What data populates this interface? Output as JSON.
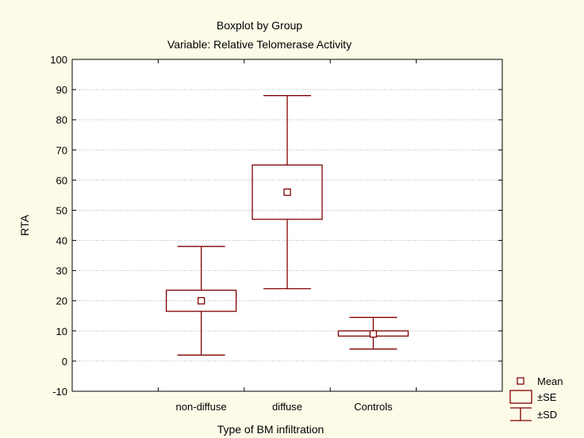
{
  "chart_data": {
    "type": "boxplot",
    "title": "Boxplot by Group",
    "subtitle": "Variable: Relative Telomerase Activity",
    "xlabel": "Type of BM infiltration",
    "ylabel": "RTA",
    "ylim": [
      -10,
      100
    ],
    "yticks": [
      "-10",
      "0",
      "10",
      "20",
      "30",
      "40",
      "50",
      "60",
      "70",
      "80",
      "90",
      "100"
    ],
    "grid": true,
    "colors": {
      "stroke": "#800000",
      "grid": "#b4b4b4",
      "plot_bg": "#ffffff",
      "page_bg": "#fcfbe7"
    },
    "categories": [
      "non-diffuse",
      "diffuse",
      "Controls"
    ],
    "groups": [
      {
        "label": "non-diffuse",
        "mean": 20,
        "se_low": 16.5,
        "se_high": 23.5,
        "sd_low": 2,
        "sd_high": 38
      },
      {
        "label": "diffuse",
        "mean": 56,
        "se_low": 47,
        "se_high": 65,
        "sd_low": 24,
        "sd_high": 88
      },
      {
        "label": "Controls",
        "mean": 9,
        "se_low": 8.3,
        "se_high": 10,
        "sd_low": 4,
        "sd_high": 14.5
      }
    ],
    "legend": {
      "position": "bottom-right",
      "items": [
        "Mean",
        "±SE",
        "±SD"
      ]
    }
  }
}
